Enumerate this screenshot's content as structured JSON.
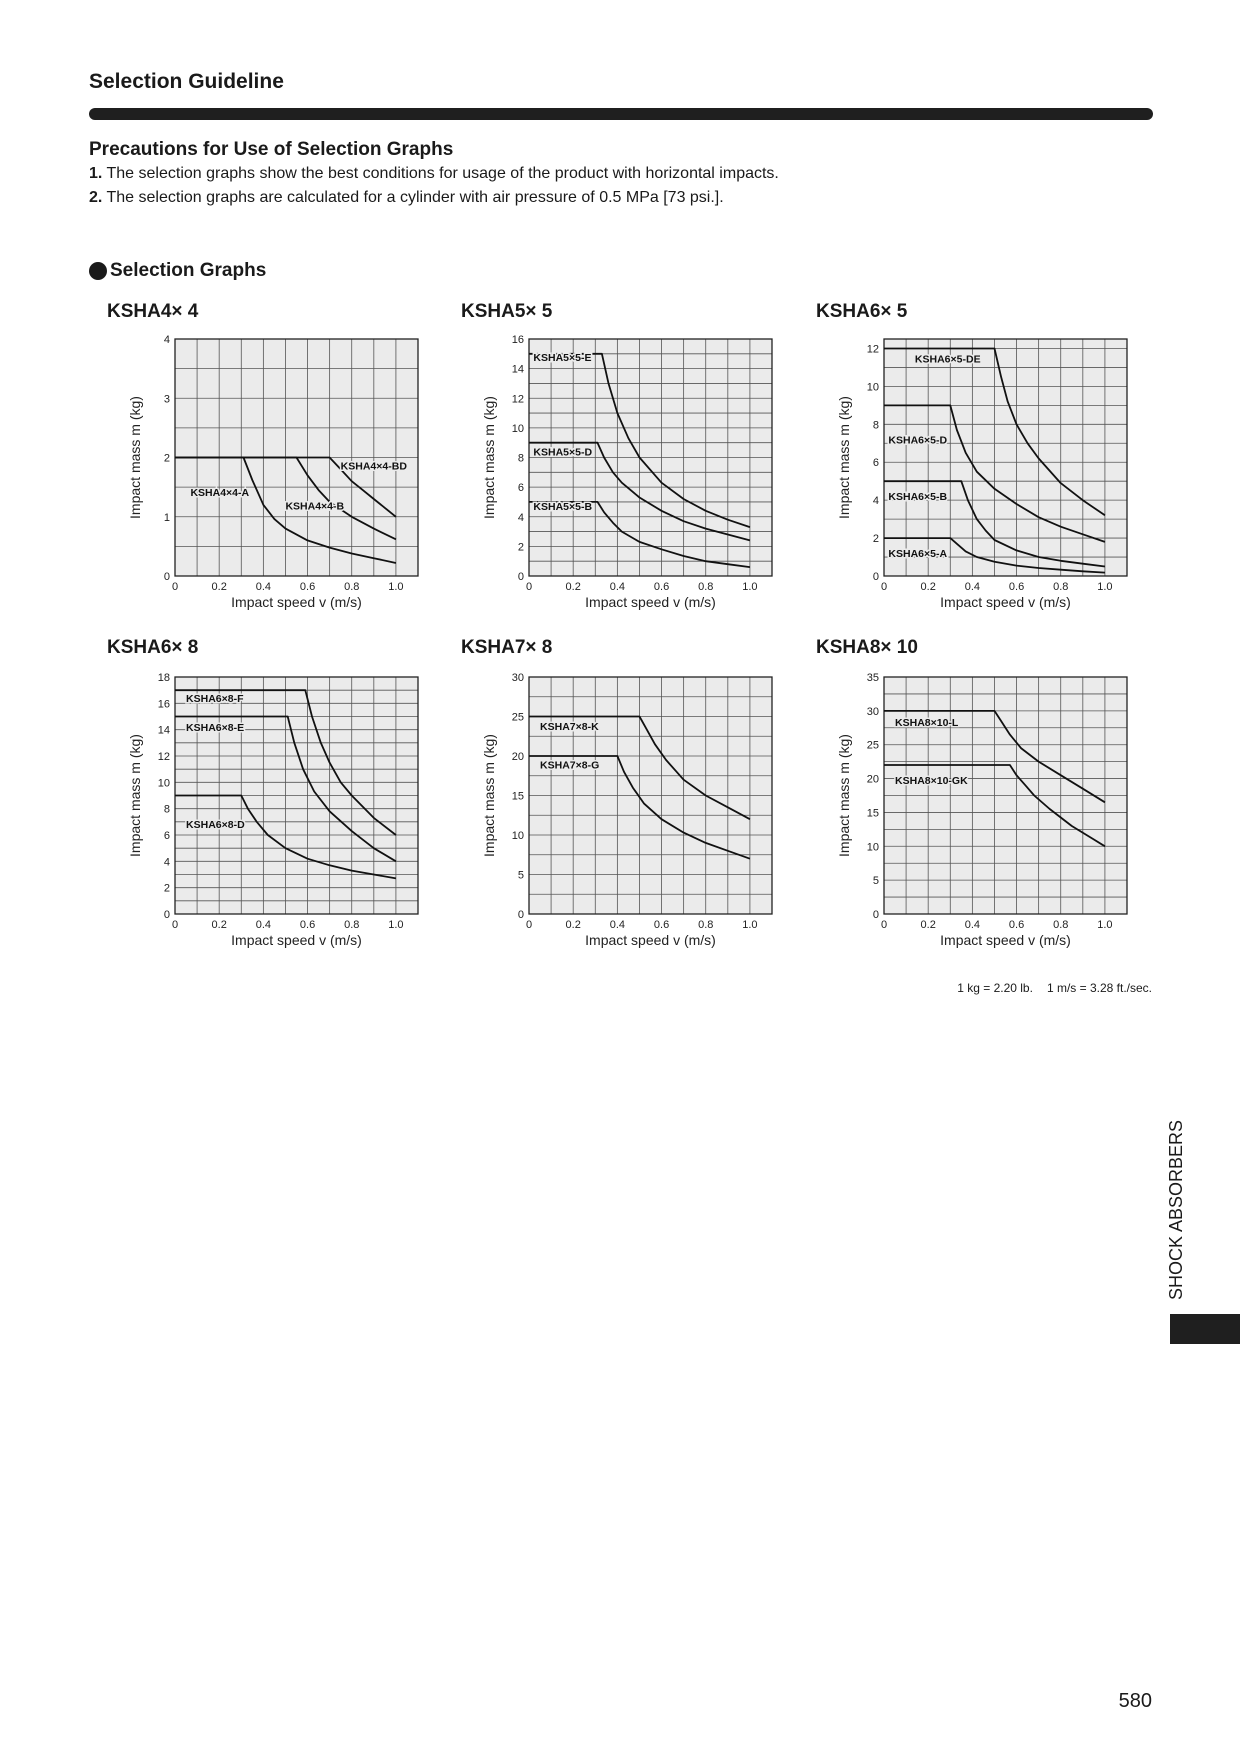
{
  "page": {
    "heading": "Selection Guideline",
    "precautions_title": "Precautions for Use of Selection Graphs",
    "precautions": [
      {
        "num": "1.",
        "text": " The selection graphs show the best conditions for usage of the product with horizontal impacts."
      },
      {
        "num": "2.",
        "text": " The selection graphs are calculated for a cylinder with air pressure of 0.5 MPa [73 psi.]."
      }
    ],
    "section_title": "Selection Graphs",
    "conversion_kg": "1 kg = 2.20 lb.",
    "conversion_ms": "1 m/s = 3.28 ft./sec.",
    "side_label": "SHOCK ABSORBERS",
    "page_number": "580"
  },
  "chart_data": [
    {
      "type": "line",
      "title": "KSHA4× 4",
      "xlabel": "Impact speed v (m/s)",
      "ylabel": "Impact mass m (kg)",
      "xlim": [
        0,
        1.1
      ],
      "ylim": [
        0,
        4
      ],
      "grid": true,
      "xticks": [
        "0",
        "0.2",
        "0.4",
        "0.6",
        "0.8",
        "1.0"
      ],
      "yticks": [
        "0",
        "1",
        "2",
        "3",
        "4"
      ],
      "series": [
        {
          "name": "KSHA4×4-A",
          "x": [
            0,
            0.31,
            0.35,
            0.4,
            0.45,
            0.5,
            0.6,
            0.7,
            0.8,
            0.9,
            1.0
          ],
          "y": [
            2,
            2,
            1.62,
            1.2,
            0.96,
            0.8,
            0.6,
            0.48,
            0.38,
            0.3,
            0.22
          ]
        },
        {
          "name": "KSHA4×4-B",
          "x": [
            0,
            0.55,
            0.6,
            0.65,
            0.7,
            0.8,
            0.9,
            1.0
          ],
          "y": [
            2,
            2,
            1.7,
            1.45,
            1.25,
            1.0,
            0.8,
            0.62
          ]
        },
        {
          "name": "KSHA4×4-BD",
          "x": [
            0,
            0.7,
            0.75,
            0.8,
            0.85,
            0.9,
            0.95,
            1.0
          ],
          "y": [
            2,
            2,
            1.8,
            1.6,
            1.45,
            1.3,
            1.15,
            1.0
          ]
        }
      ],
      "label_pos": [
        [
          0.07,
          1.35
        ],
        [
          0.5,
          1.12
        ],
        [
          0.75,
          1.8
        ]
      ]
    },
    {
      "type": "line",
      "title": "KSHA5× 5",
      "xlabel": "Impact speed v (m/s)",
      "ylabel": "Impact mass m (kg)",
      "xlim": [
        0,
        1.1
      ],
      "ylim": [
        0,
        16
      ],
      "grid": true,
      "xticks": [
        "0",
        "0.2",
        "0.4",
        "0.6",
        "0.8",
        "1.0"
      ],
      "yticks": [
        "0",
        "2",
        "4",
        "6",
        "8",
        "10",
        "12",
        "14",
        "16"
      ],
      "series": [
        {
          "name": "KSHA5×5-E",
          "x": [
            0,
            0.33,
            0.36,
            0.4,
            0.45,
            0.5,
            0.6,
            0.7,
            0.8,
            0.9,
            1.0
          ],
          "y": [
            15,
            15,
            13,
            11,
            9.3,
            8,
            6.3,
            5.2,
            4.4,
            3.8,
            3.3
          ]
        },
        {
          "name": "KSHA5×5-D",
          "x": [
            0,
            0.31,
            0.34,
            0.38,
            0.42,
            0.5,
            0.6,
            0.7,
            0.8,
            0.9,
            1.0
          ],
          "y": [
            9,
            9,
            8,
            7,
            6.3,
            5.3,
            4.4,
            3.7,
            3.2,
            2.8,
            2.4
          ]
        },
        {
          "name": "KSHA5×5-B",
          "x": [
            0,
            0.31,
            0.34,
            0.38,
            0.42,
            0.5,
            0.6,
            0.7,
            0.8,
            0.9,
            1.0
          ],
          "y": [
            5,
            5,
            4.3,
            3.6,
            3.0,
            2.3,
            1.8,
            1.35,
            1.0,
            0.8,
            0.6
          ]
        }
      ],
      "label_pos": [
        [
          0.02,
          14.5
        ],
        [
          0.02,
          8.15
        ],
        [
          0.02,
          4.45
        ]
      ]
    },
    {
      "type": "line",
      "title": "KSHA6× 5",
      "xlabel": "Impact speed v (m/s)",
      "ylabel": "Impact mass m (kg)",
      "xlim": [
        0,
        1.1
      ],
      "ylim": [
        0,
        12.5
      ],
      "grid": true,
      "xticks": [
        "0",
        "0.2",
        "0.4",
        "0.6",
        "0.8",
        "1.0"
      ],
      "yticks": [
        "0",
        "2",
        "4",
        "6",
        "8",
        "10",
        "12"
      ],
      "series": [
        {
          "name": "KSHA6×5-DE",
          "x": [
            0,
            0.5,
            0.53,
            0.56,
            0.6,
            0.65,
            0.7,
            0.8,
            0.9,
            1.0
          ],
          "y": [
            12,
            12,
            10.5,
            9.2,
            8.0,
            7.0,
            6.2,
            4.9,
            4.0,
            3.2
          ]
        },
        {
          "name": "KSHA6×5-D",
          "x": [
            0,
            0.3,
            0.33,
            0.37,
            0.42,
            0.5,
            0.6,
            0.7,
            0.8,
            0.9,
            1.0
          ],
          "y": [
            9,
            9,
            7.7,
            6.5,
            5.5,
            4.6,
            3.8,
            3.1,
            2.6,
            2.2,
            1.8
          ]
        },
        {
          "name": "KSHA6×5-B",
          "x": [
            0,
            0.35,
            0.38,
            0.42,
            0.46,
            0.5,
            0.6,
            0.7,
            0.8,
            0.9,
            1.0
          ],
          "y": [
            5,
            5,
            4.0,
            3.0,
            2.4,
            1.9,
            1.35,
            1.0,
            0.8,
            0.65,
            0.5
          ]
        },
        {
          "name": "KSHA6×5-A",
          "x": [
            0,
            0.3,
            0.33,
            0.37,
            0.42,
            0.5,
            0.6,
            0.7,
            0.8,
            0.9,
            1.0
          ],
          "y": [
            2,
            2,
            1.7,
            1.3,
            1.0,
            0.75,
            0.55,
            0.42,
            0.33,
            0.25,
            0.18
          ]
        }
      ],
      "label_pos": [
        [
          0.14,
          11.25
        ],
        [
          0.02,
          7.0
        ],
        [
          0.02,
          4.0
        ],
        [
          0.02,
          1.0
        ]
      ]
    },
    {
      "type": "line",
      "title": "KSHA6× 8",
      "xlabel": "Impact speed v (m/s)",
      "ylabel": "Impact mass m (kg)",
      "xlim": [
        0,
        1.1
      ],
      "ylim": [
        0,
        18
      ],
      "grid": true,
      "xticks": [
        "0",
        "0.2",
        "0.4",
        "0.6",
        "0.8",
        "1.0"
      ],
      "yticks": [
        "0",
        "2",
        "4",
        "6",
        "8",
        "10",
        "12",
        "14",
        "16",
        "18"
      ],
      "series": [
        {
          "name": "KSHA6×8-F",
          "x": [
            0,
            0.59,
            0.62,
            0.66,
            0.7,
            0.75,
            0.8,
            0.9,
            1.0
          ],
          "y": [
            17,
            17,
            15,
            13,
            11.5,
            10,
            9,
            7.3,
            6
          ]
        },
        {
          "name": "KSHA6×8-E",
          "x": [
            0,
            0.51,
            0.54,
            0.58,
            0.63,
            0.7,
            0.8,
            0.9,
            1.0
          ],
          "y": [
            15,
            15,
            13,
            11,
            9.3,
            7.8,
            6.3,
            5,
            4
          ]
        },
        {
          "name": "KSHA6×8-D",
          "x": [
            0,
            0.3,
            0.33,
            0.37,
            0.42,
            0.5,
            0.6,
            0.7,
            0.8,
            0.9,
            1.0
          ],
          "y": [
            9,
            9,
            8,
            7,
            6,
            5,
            4.2,
            3.7,
            3.3,
            3.0,
            2.7
          ]
        }
      ],
      "label_pos": [
        [
          0.05,
          16.1
        ],
        [
          0.05,
          13.9
        ],
        [
          0.05,
          6.55
        ]
      ]
    },
    {
      "type": "line",
      "title": "KSHA7× 8",
      "xlabel": "Impact speed v (m/s)",
      "ylabel": "Impact mass m (kg)",
      "xlim": [
        0,
        1.1
      ],
      "ylim": [
        0,
        30
      ],
      "grid": true,
      "xticks": [
        "0",
        "0.2",
        "0.4",
        "0.6",
        "0.8",
        "1.0"
      ],
      "yticks": [
        "0",
        "5",
        "10",
        "15",
        "20",
        "25",
        "30"
      ],
      "series": [
        {
          "name": "KSHA7×8-K",
          "x": [
            0,
            0.5,
            0.53,
            0.57,
            0.62,
            0.7,
            0.8,
            0.9,
            1.0
          ],
          "y": [
            25,
            25,
            23.5,
            21.5,
            19.5,
            17,
            15,
            13.5,
            12
          ]
        },
        {
          "name": "KSHA7×8-G",
          "x": [
            0,
            0.4,
            0.43,
            0.47,
            0.52,
            0.6,
            0.7,
            0.8,
            0.9,
            1.0
          ],
          "y": [
            20,
            20,
            18,
            16,
            14,
            12,
            10.3,
            9,
            8,
            7
          ]
        }
      ],
      "label_pos": [
        [
          0.05,
          23.3
        ],
        [
          0.05,
          18.4
        ]
      ]
    },
    {
      "type": "line",
      "title": "KSHA8× 10",
      "xlabel": "Impact speed v (m/s)",
      "ylabel": "Impact mass m (kg)",
      "xlim": [
        0,
        1.1
      ],
      "ylim": [
        0,
        35
      ],
      "grid": true,
      "xticks": [
        "0",
        "0.2",
        "0.4",
        "0.6",
        "0.8",
        "1.0"
      ],
      "yticks": [
        "0",
        "5",
        "10",
        "15",
        "20",
        "25",
        "30",
        "35"
      ],
      "series": [
        {
          "name": "KSHA8×10-L",
          "x": [
            0,
            0.5,
            0.53,
            0.57,
            0.62,
            0.7,
            0.8,
            0.9,
            1.0
          ],
          "y": [
            30,
            30,
            28.5,
            26.5,
            24.5,
            22.5,
            20.5,
            18.5,
            16.5
          ]
        },
        {
          "name": "KSHA8×10-GK",
          "x": [
            0,
            0.57,
            0.6,
            0.64,
            0.68,
            0.75,
            0.85,
            0.95,
            1.0
          ],
          "y": [
            22,
            22,
            20.5,
            19,
            17.5,
            15.5,
            13,
            11,
            10
          ]
        }
      ],
      "label_pos": [
        [
          0.05,
          27.8
        ],
        [
          0.05,
          19.2
        ]
      ]
    }
  ]
}
